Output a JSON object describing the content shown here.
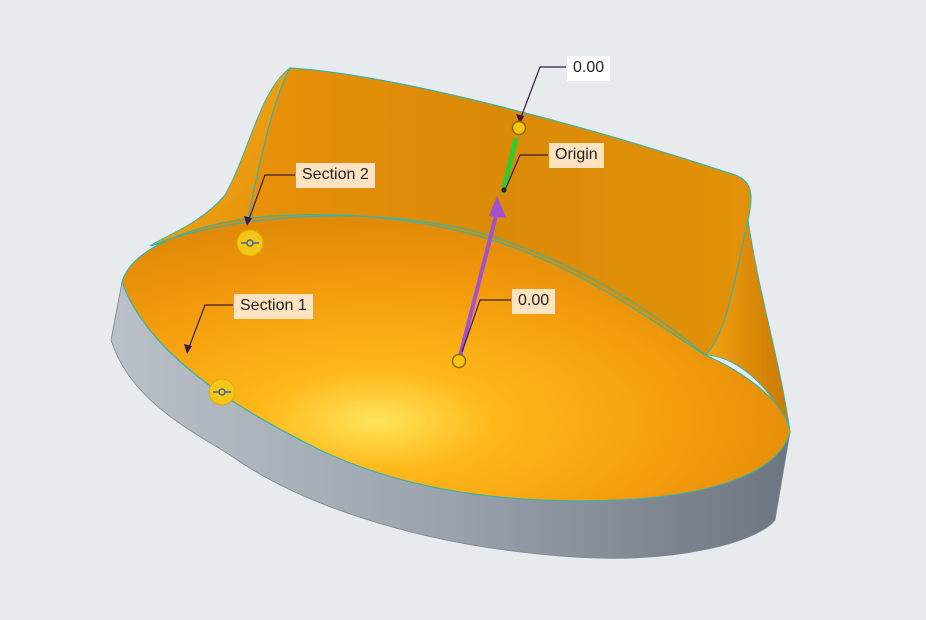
{
  "viewport": {
    "background": "#e8ebee"
  },
  "model": {
    "surface_color": "#f2a10f",
    "side_color": "#9aa4ae",
    "edge_color": "#3bb3a2",
    "trajectory_color": "#a050d0",
    "origin_segment_color": "#2ecc2e",
    "handle_color": "#f5c518"
  },
  "labels": {
    "top_value": "0.00",
    "origin": "Origin",
    "section_2": "Section 2",
    "section_1": "Section 1",
    "bottom_value": "0.00"
  },
  "icons": {
    "section_handle": "section-drag-handle-icon",
    "point_handle": "point-handle-icon",
    "direction_arrow": "direction-arrow-icon"
  }
}
